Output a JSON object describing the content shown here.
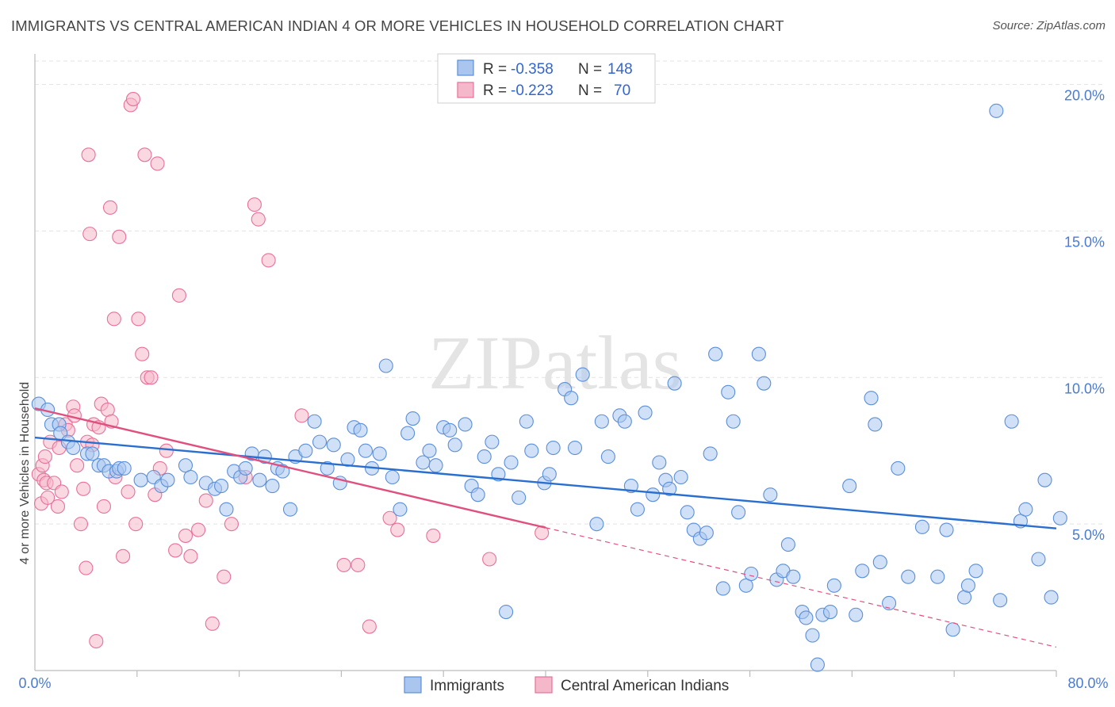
{
  "title": "IMMIGRANTS VS CENTRAL AMERICAN INDIAN 4 OR MORE VEHICLES IN HOUSEHOLD CORRELATION CHART",
  "source": "Source: ZipAtlas.com",
  "watermark": "ZIPatlas",
  "colors": {
    "blue": "#5b8fd9",
    "blue_fill": "#aac6ee",
    "blue_line": "#2a6fd0",
    "pink": "#e8709a",
    "pink_fill": "#f5b8cb",
    "pink_line": "#e0507f",
    "tick_text": "#4a7bd0"
  },
  "legend_box": [
    {
      "r_label": "R =",
      "r_value": "-0.358",
      "n_label": "N =",
      "n_value": "148"
    },
    {
      "r_label": "R =",
      "r_value": "-0.223",
      "n_label": "N =",
      "n_value": "70"
    }
  ],
  "chart_data": {
    "type": "scatter",
    "title": "IMMIGRANTS VS CENTRAL AMERICAN INDIAN 4 OR MORE VEHICLES IN HOUSEHOLD CORRELATION CHART",
    "xlabel": "",
    "ylabel": "4 or more Vehicles in Household",
    "xlim": [
      0,
      80
    ],
    "ylim": [
      0,
      20.8
    ],
    "x_tick_labels": [
      "0.0%",
      "80.0%"
    ],
    "y_ticks": [
      5,
      10,
      15,
      20
    ],
    "y_tick_labels": [
      "5.0%",
      "10.0%",
      "15.0%",
      "20.0%"
    ],
    "grid": true,
    "legend": "top-center",
    "series": [
      {
        "name": "Immigrants",
        "color": "#5b8fd9",
        "trend": {
          "x": [
            0,
            80
          ],
          "y": [
            7.95,
            4.85
          ],
          "solid_to": 80
        },
        "points": [
          [
            0.3,
            9.1
          ],
          [
            1,
            8.9
          ],
          [
            1.3,
            8.4
          ],
          [
            1.9,
            8.4
          ],
          [
            2,
            8.1
          ],
          [
            2.6,
            7.8
          ],
          [
            3,
            7.6
          ],
          [
            4.1,
            7.4
          ],
          [
            4.5,
            7.4
          ],
          [
            5,
            7.0
          ],
          [
            5.4,
            7.0
          ],
          [
            5.8,
            6.8
          ],
          [
            6.4,
            6.8
          ],
          [
            6.6,
            6.9
          ],
          [
            7,
            6.9
          ],
          [
            8.3,
            6.5
          ],
          [
            9.3,
            6.6
          ],
          [
            9.9,
            6.3
          ],
          [
            10.4,
            6.5
          ],
          [
            11.8,
            7.0
          ],
          [
            12.2,
            6.6
          ],
          [
            13.4,
            6.4
          ],
          [
            14.1,
            6.2
          ],
          [
            14.6,
            6.3
          ],
          [
            15,
            5.5
          ],
          [
            15.6,
            6.8
          ],
          [
            16.1,
            6.6
          ],
          [
            16.5,
            6.9
          ],
          [
            17,
            7.4
          ],
          [
            17.6,
            6.5
          ],
          [
            18,
            7.3
          ],
          [
            18.6,
            6.3
          ],
          [
            19,
            6.9
          ],
          [
            19.4,
            6.8
          ],
          [
            20,
            5.5
          ],
          [
            20.4,
            7.3
          ],
          [
            21.2,
            7.5
          ],
          [
            21.9,
            8.5
          ],
          [
            22.3,
            7.8
          ],
          [
            22.9,
            6.9
          ],
          [
            23.4,
            7.7
          ],
          [
            23.9,
            6.4
          ],
          [
            24.5,
            7.2
          ],
          [
            25,
            8.3
          ],
          [
            25.5,
            8.2
          ],
          [
            25.9,
            7.5
          ],
          [
            26.4,
            6.9
          ],
          [
            27,
            7.4
          ],
          [
            27.5,
            10.4
          ],
          [
            28,
            6.6
          ],
          [
            28.6,
            5.5
          ],
          [
            29.2,
            8.1
          ],
          [
            29.6,
            8.6
          ],
          [
            30.4,
            7.1
          ],
          [
            30.9,
            7.5
          ],
          [
            31.4,
            7.0
          ],
          [
            32,
            8.3
          ],
          [
            32.5,
            8.2
          ],
          [
            32.9,
            7.7
          ],
          [
            33.7,
            8.4
          ],
          [
            34.2,
            6.3
          ],
          [
            34.7,
            6.0
          ],
          [
            35.2,
            7.3
          ],
          [
            35.8,
            7.8
          ],
          [
            36.3,
            6.7
          ],
          [
            36.9,
            2.0
          ],
          [
            37.3,
            7.1
          ],
          [
            37.9,
            5.9
          ],
          [
            38.5,
            8.5
          ],
          [
            38.9,
            7.5
          ],
          [
            39.9,
            6.4
          ],
          [
            40.3,
            6.7
          ],
          [
            40.6,
            7.6
          ],
          [
            41.5,
            9.6
          ],
          [
            42,
            9.3
          ],
          [
            42.3,
            7.6
          ],
          [
            42.9,
            10.1
          ],
          [
            44,
            5.0
          ],
          [
            44.4,
            8.5
          ],
          [
            44.9,
            7.3
          ],
          [
            45.8,
            8.7
          ],
          [
            46.2,
            8.5
          ],
          [
            46.7,
            6.3
          ],
          [
            47.2,
            5.5
          ],
          [
            47.8,
            8.8
          ],
          [
            48.4,
            6.0
          ],
          [
            48.9,
            7.1
          ],
          [
            49.4,
            6.5
          ],
          [
            49.7,
            6.2
          ],
          [
            50.1,
            9.8
          ],
          [
            50.6,
            6.6
          ],
          [
            51.1,
            5.4
          ],
          [
            51.6,
            4.8
          ],
          [
            52.1,
            4.5
          ],
          [
            52.6,
            4.7
          ],
          [
            52.9,
            7.4
          ],
          [
            53.3,
            10.8
          ],
          [
            53.9,
            2.8
          ],
          [
            54.3,
            9.5
          ],
          [
            54.7,
            8.5
          ],
          [
            55.1,
            5.4
          ],
          [
            55.7,
            2.9
          ],
          [
            56.1,
            3.3
          ],
          [
            56.7,
            10.8
          ],
          [
            57.1,
            9.8
          ],
          [
            57.6,
            6.0
          ],
          [
            58.1,
            3.1
          ],
          [
            58.6,
            3.4
          ],
          [
            59,
            4.3
          ],
          [
            59.4,
            3.2
          ],
          [
            60.1,
            2.0
          ],
          [
            60.4,
            1.8
          ],
          [
            60.9,
            1.2
          ],
          [
            61.3,
            0.2
          ],
          [
            61.7,
            1.9
          ],
          [
            62.3,
            2.0
          ],
          [
            62.6,
            2.9
          ],
          [
            63.8,
            6.3
          ],
          [
            64.3,
            1.9
          ],
          [
            64.8,
            3.4
          ],
          [
            65.5,
            9.3
          ],
          [
            65.8,
            8.4
          ],
          [
            66.2,
            3.7
          ],
          [
            66.9,
            2.3
          ],
          [
            67.6,
            6.9
          ],
          [
            68.4,
            3.2
          ],
          [
            69.5,
            4.9
          ],
          [
            70.7,
            3.2
          ],
          [
            71.4,
            4.8
          ],
          [
            71.9,
            1.4
          ],
          [
            72.8,
            2.5
          ],
          [
            73.1,
            2.9
          ],
          [
            73.7,
            3.4
          ],
          [
            75.3,
            19.1
          ],
          [
            75.6,
            2.4
          ],
          [
            76.5,
            8.5
          ],
          [
            77.2,
            5.1
          ],
          [
            77.6,
            5.5
          ],
          [
            78.6,
            3.8
          ],
          [
            79.1,
            6.5
          ],
          [
            79.6,
            2.5
          ],
          [
            80.3,
            5.2
          ]
        ]
      },
      {
        "name": "Central American Indians",
        "color": "#e8709a",
        "trend": {
          "x": [
            0,
            80
          ],
          "y": [
            8.95,
            0.8
          ],
          "solid_to": 40
        },
        "points": [
          [
            0.3,
            6.7
          ],
          [
            0.5,
            5.7
          ],
          [
            0.6,
            7.0
          ],
          [
            0.7,
            6.5
          ],
          [
            0.8,
            7.3
          ],
          [
            0.9,
            6.4
          ],
          [
            1.0,
            5.9
          ],
          [
            1.2,
            7.8
          ],
          [
            1.5,
            6.4
          ],
          [
            1.8,
            5.6
          ],
          [
            1.9,
            7.6
          ],
          [
            2.1,
            6.1
          ],
          [
            2.4,
            8.4
          ],
          [
            2.6,
            8.2
          ],
          [
            3.0,
            9.0
          ],
          [
            3.1,
            8.7
          ],
          [
            3.3,
            7.0
          ],
          [
            3.6,
            5.0
          ],
          [
            3.8,
            6.2
          ],
          [
            4.0,
            3.5
          ],
          [
            4.1,
            7.8
          ],
          [
            4.2,
            17.6
          ],
          [
            4.3,
            14.9
          ],
          [
            4.5,
            7.7
          ],
          [
            4.6,
            8.4
          ],
          [
            4.8,
            1.0
          ],
          [
            5.0,
            8.3
          ],
          [
            5.2,
            9.1
          ],
          [
            5.4,
            5.6
          ],
          [
            5.7,
            8.9
          ],
          [
            5.9,
            15.8
          ],
          [
            6.0,
            8.5
          ],
          [
            6.2,
            12.0
          ],
          [
            6.3,
            6.6
          ],
          [
            6.6,
            14.8
          ],
          [
            6.9,
            3.9
          ],
          [
            7.3,
            6.1
          ],
          [
            7.5,
            19.3
          ],
          [
            7.7,
            19.5
          ],
          [
            7.9,
            5.0
          ],
          [
            8.1,
            12.0
          ],
          [
            8.4,
            10.8
          ],
          [
            8.6,
            17.6
          ],
          [
            8.8,
            10.0
          ],
          [
            9.1,
            10.0
          ],
          [
            9.4,
            6.0
          ],
          [
            9.6,
            17.3
          ],
          [
            9.8,
            6.9
          ],
          [
            10.3,
            7.5
          ],
          [
            11.0,
            4.1
          ],
          [
            11.3,
            12.8
          ],
          [
            11.8,
            4.6
          ],
          [
            12.2,
            3.9
          ],
          [
            12.8,
            4.8
          ],
          [
            13.4,
            5.8
          ],
          [
            13.9,
            1.6
          ],
          [
            14.8,
            3.2
          ],
          [
            15.4,
            5.0
          ],
          [
            16.5,
            6.6
          ],
          [
            17.2,
            15.9
          ],
          [
            17.5,
            15.4
          ],
          [
            18.3,
            14.0
          ],
          [
            20.9,
            8.7
          ],
          [
            24.2,
            3.6
          ],
          [
            25.3,
            3.6
          ],
          [
            26.2,
            1.5
          ],
          [
            27.8,
            5.2
          ],
          [
            28.4,
            4.8
          ],
          [
            31.2,
            4.6
          ],
          [
            35.6,
            3.8
          ],
          [
            39.7,
            4.7
          ]
        ]
      }
    ]
  }
}
